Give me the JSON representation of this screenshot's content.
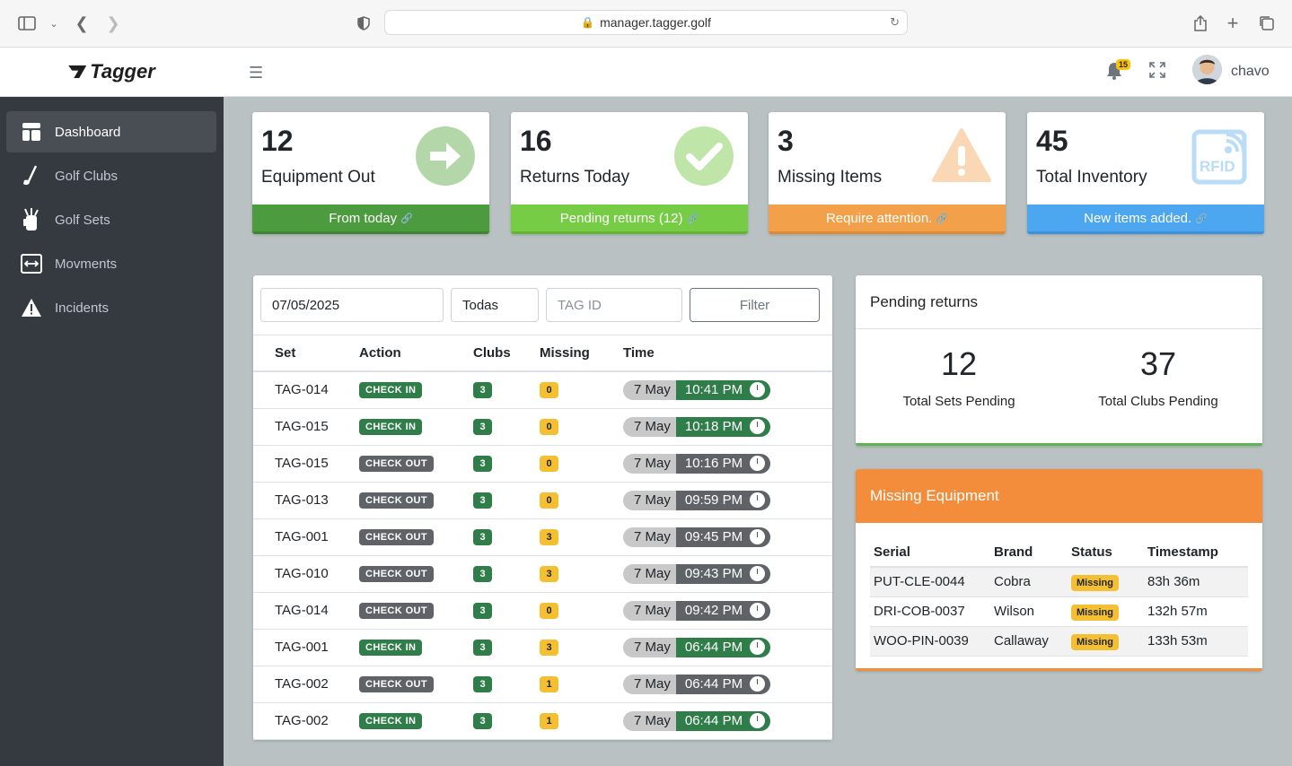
{
  "browser": {
    "url": "manager.tagger.golf"
  },
  "brand": {
    "name": "Tagger"
  },
  "sidebar": {
    "items": [
      {
        "label": "Dashboard",
        "icon": "dashboard-icon",
        "active": true
      },
      {
        "label": "Golf Clubs",
        "icon": "golf-club-icon",
        "active": false
      },
      {
        "label": "Golf Sets",
        "icon": "golf-bag-icon",
        "active": false
      },
      {
        "label": "Movments",
        "icon": "arrows-icon",
        "active": false
      },
      {
        "label": "Incidents",
        "icon": "warning-icon",
        "active": false
      }
    ]
  },
  "topbar": {
    "notifications": "15",
    "username": "chavo"
  },
  "stats": [
    {
      "value": "12",
      "label": "Equipment Out",
      "footer": "From today",
      "color": "#4c9b3e",
      "icon": "arrow-right-icon"
    },
    {
      "value": "16",
      "label": "Returns Today",
      "footer": "Pending returns (12)",
      "color": "#77cc45",
      "icon": "check-icon"
    },
    {
      "value": "3",
      "label": "Missing Items",
      "footer": "Require attention.",
      "color": "#f3a04a",
      "icon": "warning-icon"
    },
    {
      "value": "45",
      "label": "Total Inventory",
      "footer": "New items added.",
      "color": "#4ca6f0",
      "icon": "rfid-icon"
    }
  ],
  "movements": {
    "filters": {
      "date": "07/05/2025",
      "type": "Todas",
      "tag_placeholder": "TAG ID",
      "button": "Filter"
    },
    "columns": [
      "Set",
      "Action",
      "Clubs",
      "Missing",
      "Time"
    ],
    "rows": [
      {
        "set": "TAG-014",
        "action": "CHECK IN",
        "clubs": "3",
        "missing": "0",
        "date": "7 May",
        "time": "10:41 PM"
      },
      {
        "set": "TAG-015",
        "action": "CHECK IN",
        "clubs": "3",
        "missing": "0",
        "date": "7 May",
        "time": "10:18 PM"
      },
      {
        "set": "TAG-015",
        "action": "CHECK OUT",
        "clubs": "3",
        "missing": "0",
        "date": "7 May",
        "time": "10:16 PM"
      },
      {
        "set": "TAG-013",
        "action": "CHECK OUT",
        "clubs": "3",
        "missing": "0",
        "date": "7 May",
        "time": "09:59 PM"
      },
      {
        "set": "TAG-001",
        "action": "CHECK OUT",
        "clubs": "3",
        "missing": "3",
        "date": "7 May",
        "time": "09:45 PM"
      },
      {
        "set": "TAG-010",
        "action": "CHECK OUT",
        "clubs": "3",
        "missing": "3",
        "date": "7 May",
        "time": "09:43 PM"
      },
      {
        "set": "TAG-014",
        "action": "CHECK OUT",
        "clubs": "3",
        "missing": "0",
        "date": "7 May",
        "time": "09:42 PM"
      },
      {
        "set": "TAG-001",
        "action": "CHECK IN",
        "clubs": "3",
        "missing": "3",
        "date": "7 May",
        "time": "06:44 PM"
      },
      {
        "set": "TAG-002",
        "action": "CHECK OUT",
        "clubs": "3",
        "missing": "1",
        "date": "7 May",
        "time": "06:44 PM"
      },
      {
        "set": "TAG-002",
        "action": "CHECK IN",
        "clubs": "3",
        "missing": "1",
        "date": "7 May",
        "time": "06:44 PM"
      }
    ]
  },
  "pending": {
    "title": "Pending returns",
    "sets_value": "12",
    "sets_label": "Total Sets Pending",
    "clubs_value": "37",
    "clubs_label": "Total Clubs Pending"
  },
  "missing": {
    "title": "Missing Equipment",
    "columns": [
      "Serial",
      "Brand",
      "Status",
      "Timestamp"
    ],
    "rows": [
      {
        "serial": "PUT-CLE-0044",
        "brand": "Cobra",
        "status": "Missing",
        "timestamp": "83h 36m"
      },
      {
        "serial": "DRI-COB-0037",
        "brand": "Wilson",
        "status": "Missing",
        "timestamp": "132h 57m"
      },
      {
        "serial": "WOO-PIN-0039",
        "brand": "Callaway",
        "status": "Missing",
        "timestamp": "133h 53m"
      }
    ]
  }
}
